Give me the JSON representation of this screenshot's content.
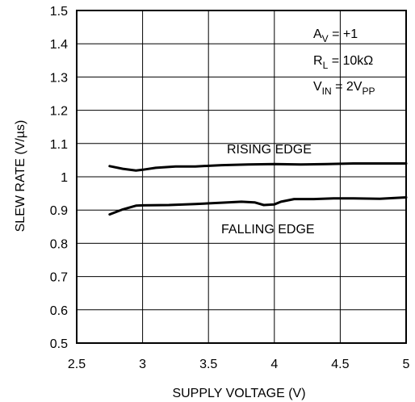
{
  "chart_data": {
    "type": "line",
    "xlabel": "SUPPLY VOLTAGE (V)",
    "ylabel": "SLEW RATE (V/µs)",
    "xlim": [
      2.5,
      5
    ],
    "ylim": [
      0.5,
      1.5
    ],
    "x_ticks": [
      "2.5",
      "3",
      "3.5",
      "4",
      "4.5",
      "5"
    ],
    "y_ticks": [
      "0.5",
      "0.6",
      "0.7",
      "0.8",
      "0.9",
      "1",
      "1.1",
      "1.2",
      "1.3",
      "1.4",
      "1.5"
    ],
    "grid": true,
    "series": [
      {
        "name": "RISING EDGE",
        "x": [
          2.75,
          2.85,
          2.95,
          3.0,
          3.1,
          3.25,
          3.4,
          3.6,
          3.8,
          4.0,
          4.2,
          4.4,
          4.6,
          4.8,
          5.0
        ],
        "y": [
          1.032,
          1.024,
          1.019,
          1.021,
          1.027,
          1.031,
          1.031,
          1.035,
          1.037,
          1.038,
          1.037,
          1.038,
          1.04,
          1.04,
          1.04
        ]
      },
      {
        "name": "FALLING EDGE",
        "x": [
          2.75,
          2.85,
          2.95,
          3.0,
          3.2,
          3.4,
          3.6,
          3.75,
          3.85,
          3.92,
          4.0,
          4.05,
          4.15,
          4.3,
          4.45,
          4.6,
          4.8,
          5.0
        ],
        "y": [
          0.887,
          0.902,
          0.913,
          0.914,
          0.915,
          0.918,
          0.922,
          0.925,
          0.923,
          0.915,
          0.917,
          0.925,
          0.933,
          0.933,
          0.935,
          0.935,
          0.934,
          0.938
        ]
      }
    ],
    "annotations": {
      "rising_label": "RISING EDGE",
      "falling_label": "FALLING EDGE",
      "av_main": "A",
      "av_sub": "V",
      "av_value": " = +1",
      "rl_main": "R",
      "rl_sub": "L",
      "rl_value": " = 10kΩ",
      "vin_main": "V",
      "vin_sub": "IN",
      "vin_value": " = 2V",
      "vin_unit_sub": "PP"
    },
    "colors": {
      "line": "#000000",
      "grid": "#000000"
    }
  }
}
